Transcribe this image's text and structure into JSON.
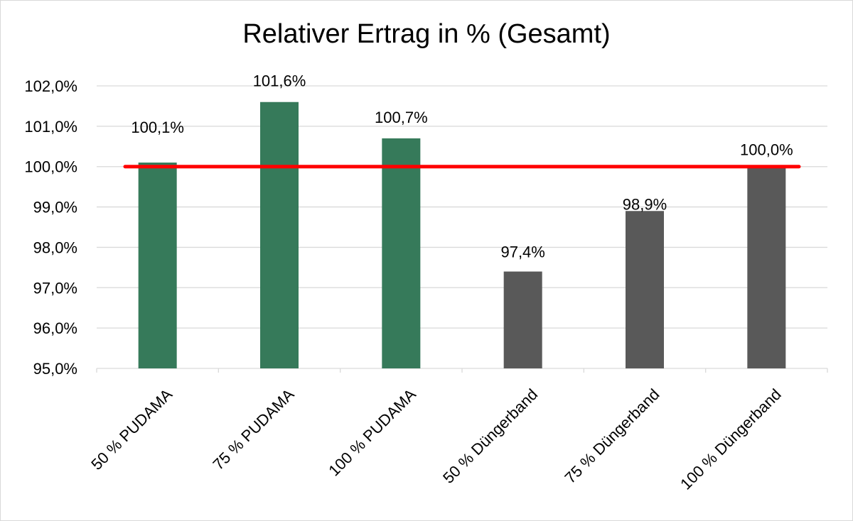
{
  "chart_data": {
    "type": "bar",
    "title": "Relativer Ertrag in % (Gesamt)",
    "xlabel": "",
    "ylabel": "",
    "categories": [
      "50 % PUDAMA",
      "75 % PUDAMA",
      "100 % PUDAMA",
      "50 % Düngerband",
      "75 % Düngerband",
      "100 % Düngerband"
    ],
    "values": [
      100.1,
      101.6,
      100.7,
      97.4,
      98.9,
      100.0
    ],
    "data_labels": [
      "100,1%",
      "101,6%",
      "100,7%",
      "97,4%",
      "98,9%",
      "100,0%"
    ],
    "bar_colors": [
      "#367a5a",
      "#367a5a",
      "#367a5a",
      "#595959",
      "#595959",
      "#595959"
    ],
    "ylim": [
      95,
      102
    ],
    "yticks": [
      95,
      96,
      97,
      98,
      99,
      100,
      101,
      102
    ],
    "ytick_labels": [
      "95,0%",
      "96,0%",
      "97,0%",
      "98,0%",
      "99,0%",
      "100,0%",
      "101,0%",
      "102,0%"
    ],
    "reference_line": {
      "value": 100.0,
      "color": "#ff0000"
    },
    "grid": true,
    "gridline_color": "#d9d9d9",
    "legend": "none"
  }
}
